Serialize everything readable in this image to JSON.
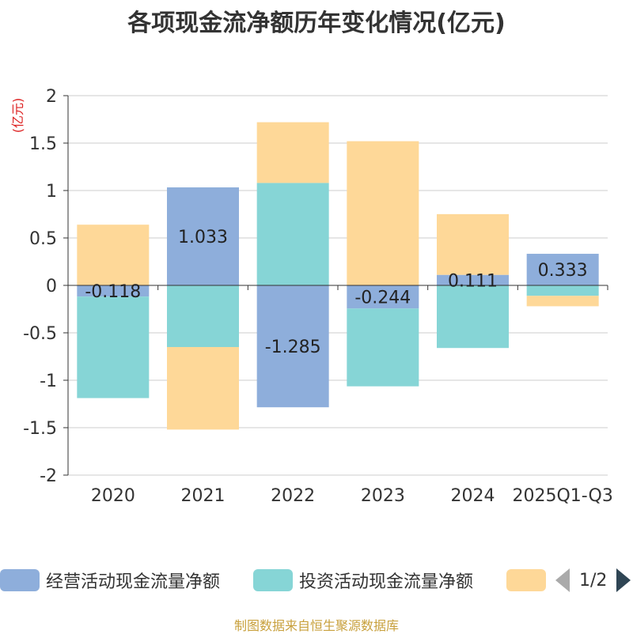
{
  "chart_data": {
    "type": "bar",
    "stacked": true,
    "title": "各项现金流净额历年变化情况(亿元)",
    "ylabel": "(亿元)",
    "xlabel": "",
    "ylim": [
      -2,
      2
    ],
    "yticks": [
      2,
      1.5,
      1,
      0.5,
      0,
      -0.5,
      -1,
      -1.5,
      -2
    ],
    "ytick_labels": [
      "2",
      "1.5",
      "1",
      "0.5",
      "0",
      "-0.5",
      "-1",
      "-1.5",
      "-2"
    ],
    "categories": [
      "2020",
      "2021",
      "2022",
      "2023",
      "2024",
      "2025Q1-Q3"
    ],
    "series": [
      {
        "name": "经营活动现金流量净额",
        "color": "#8eaedb",
        "values": [
          -0.118,
          1.033,
          -1.285,
          -0.244,
          0.111,
          0.333
        ],
        "labels": [
          "-0.118",
          "1.033",
          "-1.285",
          "-0.244",
          "0.111",
          "0.333"
        ]
      },
      {
        "name": "投资活动现金流量净额",
        "color": "#86d5d6",
        "values": [
          -1.07,
          -0.65,
          1.08,
          -0.82,
          -0.66,
          -0.11
        ],
        "labels": [
          "",
          "",
          "",
          "",
          "",
          ""
        ]
      },
      {
        "name": "",
        "color": "#fed898",
        "values": [
          0.64,
          -0.87,
          0.64,
          1.52,
          0.64,
          -0.11
        ],
        "labels": [
          "",
          "",
          "",
          "",
          "",
          ""
        ]
      }
    ],
    "legend_position": "bottom",
    "grid": true
  },
  "legend": {
    "items": [
      {
        "label": "经营活动现金流量净额",
        "color": "#8eaedb"
      },
      {
        "label": "投资活动现金流量净额",
        "color": "#86d5d6"
      },
      {
        "label": "",
        "color": "#fed898"
      }
    ],
    "pager_text": "1/2"
  },
  "source_note": "制图数据来自恒生聚源数据库"
}
